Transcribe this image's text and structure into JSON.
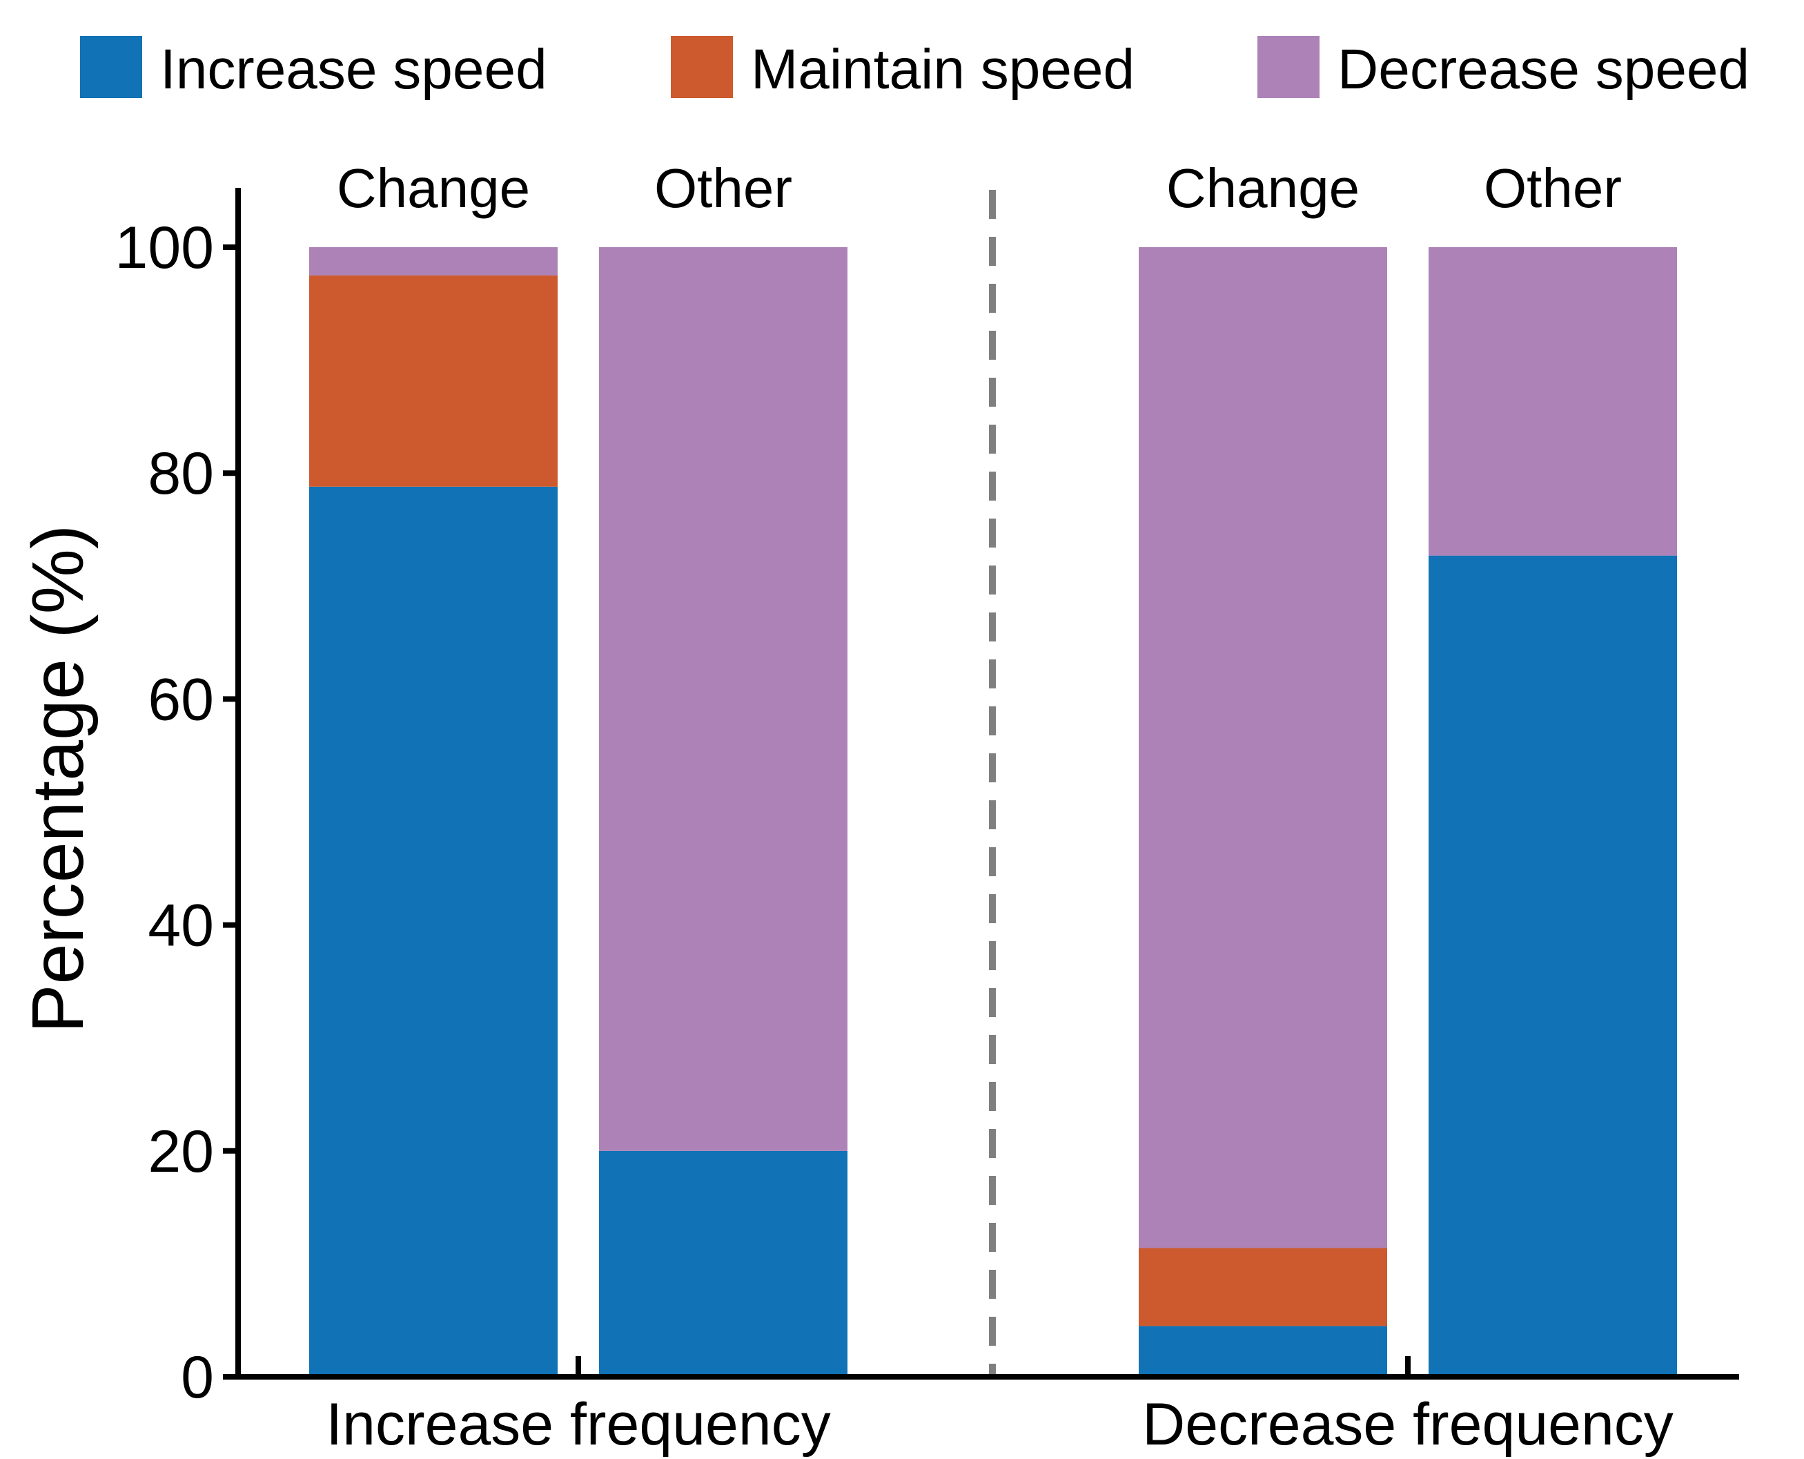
{
  "chart_data": {
    "type": "bar",
    "stacked": true,
    "ylabel": "Percentage (%)",
    "ylim": [
      0,
      100
    ],
    "yticks": [
      0,
      20,
      40,
      60,
      80,
      100
    ],
    "grid": false,
    "legend_position": "top",
    "series": [
      {
        "name": "Increase speed",
        "color": "#1172b5"
      },
      {
        "name": "Maintain speed",
        "color": "#cc5a2e"
      },
      {
        "name": "Decrease speed",
        "color": "#ad82b7"
      }
    ],
    "groups": [
      {
        "label": "Increase frequency",
        "bars": [
          {
            "label": "Change",
            "values": [
              78.8,
              18.7,
              2.5
            ]
          },
          {
            "label": "Other",
            "values": [
              20.0,
              0,
              80.0
            ]
          }
        ]
      },
      {
        "label": "Decrease frequency",
        "bars": [
          {
            "label": "Change",
            "values": [
              4.5,
              6.9,
              88.6
            ]
          },
          {
            "label": "Other",
            "values": [
              72.7,
              0,
              27.3
            ]
          }
        ]
      }
    ],
    "separator": {
      "style": "dashed",
      "color": "#7f7f7f"
    }
  }
}
